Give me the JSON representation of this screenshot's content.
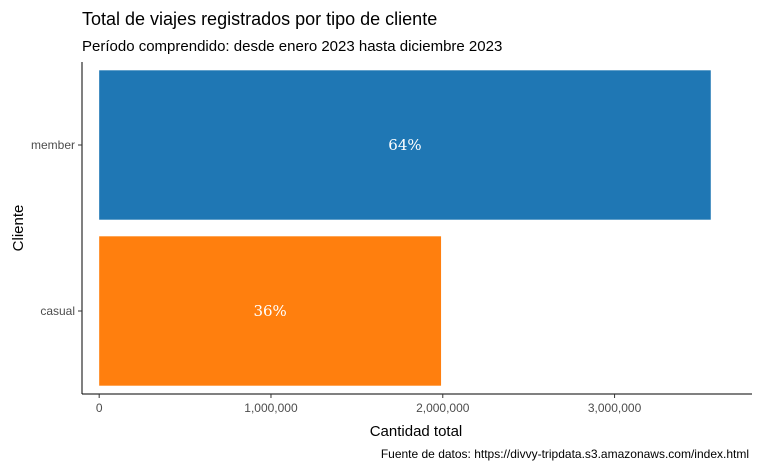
{
  "chart_data": {
    "type": "bar",
    "orientation": "horizontal",
    "title": "Total de viajes registrados por tipo de cliente",
    "subtitle": "Período comprendido: desde enero 2023 hasta diciembre 2023",
    "xlabel": "Cantidad total",
    "ylabel": "Cliente",
    "caption": "Fuente de datos: https://divvy-tripdata.s3.amazonaws.com/index.html",
    "categories": [
      "member",
      "casual"
    ],
    "values": [
      3560000,
      1990000
    ],
    "bar_labels": [
      "64%",
      "36%"
    ],
    "colors": [
      "#1f77b4",
      "#ff7f0e"
    ],
    "xlim": [
      -100000,
      3800000
    ],
    "xticks": [
      0,
      1000000,
      2000000,
      3000000
    ],
    "xtick_labels": [
      "0",
      "1,000,000",
      "2,000,000",
      "3,000,000"
    ],
    "grid": false,
    "legend": "none"
  }
}
